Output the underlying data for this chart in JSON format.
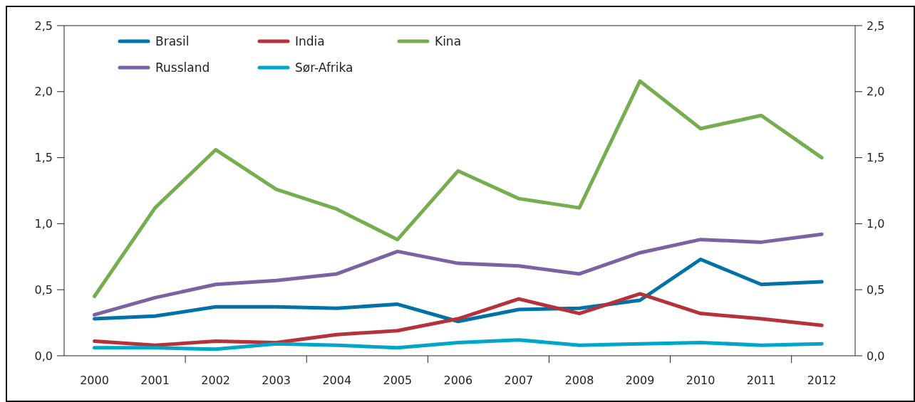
{
  "chart_data": {
    "type": "line",
    "x": [
      2000,
      2001,
      2002,
      2003,
      2004,
      2005,
      2006,
      2007,
      2008,
      2009,
      2010,
      2011,
      2012
    ],
    "series": [
      {
        "name": "Brasil",
        "color": "#0072a8",
        "values": [
          0.28,
          0.3,
          0.37,
          0.37,
          0.36,
          0.39,
          0.26,
          0.35,
          0.36,
          0.42,
          0.73,
          0.54,
          0.56
        ]
      },
      {
        "name": "India",
        "color": "#b5323a",
        "values": [
          0.11,
          0.08,
          0.11,
          0.1,
          0.16,
          0.19,
          0.28,
          0.43,
          0.32,
          0.47,
          0.32,
          0.28,
          0.23
        ]
      },
      {
        "name": "Kina",
        "color": "#76ad4f",
        "values": [
          0.45,
          1.12,
          1.56,
          1.26,
          1.11,
          0.88,
          1.4,
          1.19,
          1.12,
          2.08,
          1.72,
          1.82,
          1.5
        ]
      },
      {
        "name": "Russland",
        "color": "#7b62a2",
        "values": [
          0.31,
          0.44,
          0.54,
          0.57,
          0.62,
          0.79,
          0.7,
          0.68,
          0.62,
          0.78,
          0.88,
          0.86,
          0.92
        ]
      },
      {
        "name": "Sør-Afrika",
        "color": "#00a5c8",
        "values": [
          0.06,
          0.06,
          0.05,
          0.09,
          0.08,
          0.06,
          0.1,
          0.12,
          0.08,
          0.09,
          0.1,
          0.08,
          0.09
        ]
      }
    ],
    "xlim": [
      1999.5,
      2012.55
    ],
    "xticks": [
      2000,
      2001,
      2002,
      2003,
      2004,
      2005,
      2006,
      2007,
      2008,
      2009,
      2010,
      2011,
      2012,
      {
        "value": 2001.5,
        "label": null
      },
      {
        "value": 2003.5,
        "label": null
      },
      {
        "value": 2005.5,
        "label": null
      },
      {
        "value": 2007.5,
        "label": null
      },
      {
        "value": 2009.5,
        "label": null
      },
      {
        "value": 2011.5,
        "label": null
      }
    ],
    "ylim": [
      0,
      2.5
    ],
    "yticks": [
      {
        "value": 0,
        "label": "0,0"
      },
      {
        "value": 0.5,
        "label": "0,5"
      },
      {
        "value": 1,
        "label": "1,0"
      },
      {
        "value": 1.5,
        "label": "1,5"
      },
      {
        "value": 2,
        "label": "2,0"
      },
      {
        "value": 2.5,
        "label": "2,5"
      }
    ],
    "y2lim": [
      0,
      2.5
    ],
    "y2ticks": [
      {
        "value": 0,
        "label": "0,0"
      },
      {
        "value": 0.5,
        "label": "0,5"
      },
      {
        "value": 1,
        "label": "1,0"
      },
      {
        "value": 1.5,
        "label": "1,5"
      },
      {
        "value": 2,
        "label": "2,0"
      },
      {
        "value": 2.5,
        "label": "2,5"
      }
    ],
    "legend": "top left",
    "grid": false,
    "line_style": "solid",
    "marker": "none"
  }
}
